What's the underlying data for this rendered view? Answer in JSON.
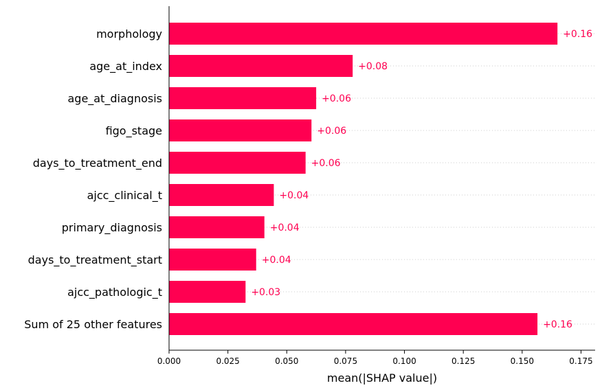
{
  "chart_data": {
    "type": "bar",
    "orientation": "horizontal",
    "categories": [
      "morphology",
      "age_at_index",
      "age_at_diagnosis",
      "figo_stage",
      "days_to_treatment_end",
      "ajcc_clinical_t",
      "primary_diagnosis",
      "days_to_treatment_start",
      "ajcc_pathologic_t",
      "Sum of 25 other features"
    ],
    "values": [
      0.165,
      0.078,
      0.0625,
      0.0605,
      0.058,
      0.0445,
      0.0405,
      0.037,
      0.0325,
      0.1565
    ],
    "value_labels": [
      "+0.16",
      "+0.08",
      "+0.06",
      "+0.06",
      "+0.06",
      "+0.04",
      "+0.04",
      "+0.04",
      "+0.03",
      "+0.16"
    ],
    "xlabel": "mean(|SHAP value|)",
    "ylabel": "",
    "title": "",
    "xlim": [
      0,
      0.181
    ],
    "xticks": [
      0,
      0.025,
      0.05,
      0.075,
      0.1,
      0.125,
      0.15,
      0.175
    ],
    "xtick_labels": [
      "0.000",
      "0.025",
      "0.050",
      "0.075",
      "0.100",
      "0.125",
      "0.150",
      "0.175"
    ],
    "grid": "dotted row guides",
    "legend": "none",
    "colors": {
      "bar": "#ff0051",
      "label": "#ff0051",
      "guide": "#cccccc",
      "axis": "#000000"
    }
  }
}
